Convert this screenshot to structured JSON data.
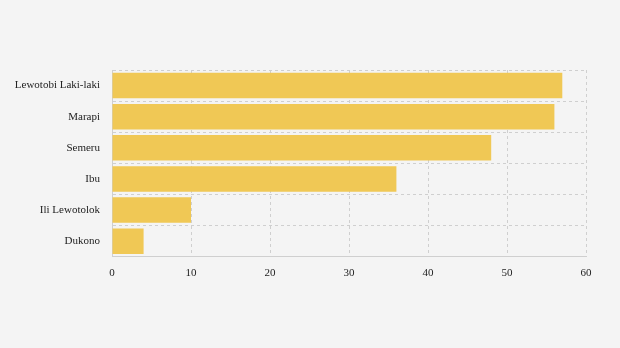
{
  "chart_data": {
    "type": "bar",
    "orientation": "horizontal",
    "categories": [
      "Lewotobi Laki-laki",
      "Marapi",
      "Semeru",
      "Ibu",
      "Ili Lewotolok",
      "Dukono"
    ],
    "values": [
      57,
      56,
      48,
      36,
      10,
      4
    ],
    "color": "#f0c855",
    "xlim": [
      0,
      60
    ],
    "xticks": [
      0,
      10,
      20,
      30,
      40,
      50,
      60
    ],
    "grid": true
  }
}
